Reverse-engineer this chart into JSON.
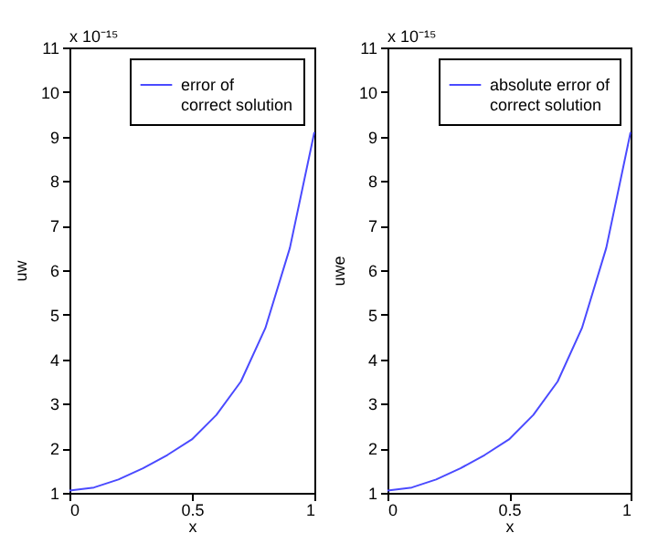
{
  "chart_data": [
    {
      "type": "line",
      "xlabel": "x",
      "ylabel": "uw",
      "xlim": [
        0,
        1
      ],
      "xticks": [
        0,
        0.5,
        1
      ],
      "ylim": [
        1,
        11
      ],
      "yticks": [
        1,
        2,
        3,
        4,
        5,
        6,
        7,
        8,
        9,
        10,
        11
      ],
      "legend": "top right",
      "annotations": [
        "x 10⁻¹⁵"
      ],
      "series": [
        {
          "name": "error of correct solution",
          "color": "#4a4aff",
          "x": [
            0,
            0.1,
            0.2,
            0.3,
            0.4,
            0.5,
            0.6,
            0.7,
            0.8,
            0.9,
            1
          ],
          "values": [
            1.05,
            1.12,
            1.3,
            1.55,
            1.85,
            2.2,
            2.75,
            3.5,
            4.7,
            6.5,
            9.1
          ]
        }
      ]
    },
    {
      "type": "line",
      "xlabel": "x",
      "ylabel": "uwe",
      "xlim": [
        0,
        1
      ],
      "xticks": [
        0,
        0.5,
        1
      ],
      "ylim": [
        1,
        11
      ],
      "yticks": [
        1,
        2,
        3,
        4,
        5,
        6,
        7,
        8,
        9,
        10,
        11
      ],
      "legend": "top right",
      "annotations": [
        "x 10⁻¹⁵"
      ],
      "series": [
        {
          "name": "absolute error of correct solution",
          "color": "#4a4aff",
          "x": [
            0,
            0.1,
            0.2,
            0.3,
            0.4,
            0.5,
            0.6,
            0.7,
            0.8,
            0.9,
            1
          ],
          "values": [
            1.05,
            1.12,
            1.3,
            1.55,
            1.85,
            2.2,
            2.75,
            3.5,
            4.7,
            6.5,
            9.1
          ]
        }
      ]
    }
  ]
}
